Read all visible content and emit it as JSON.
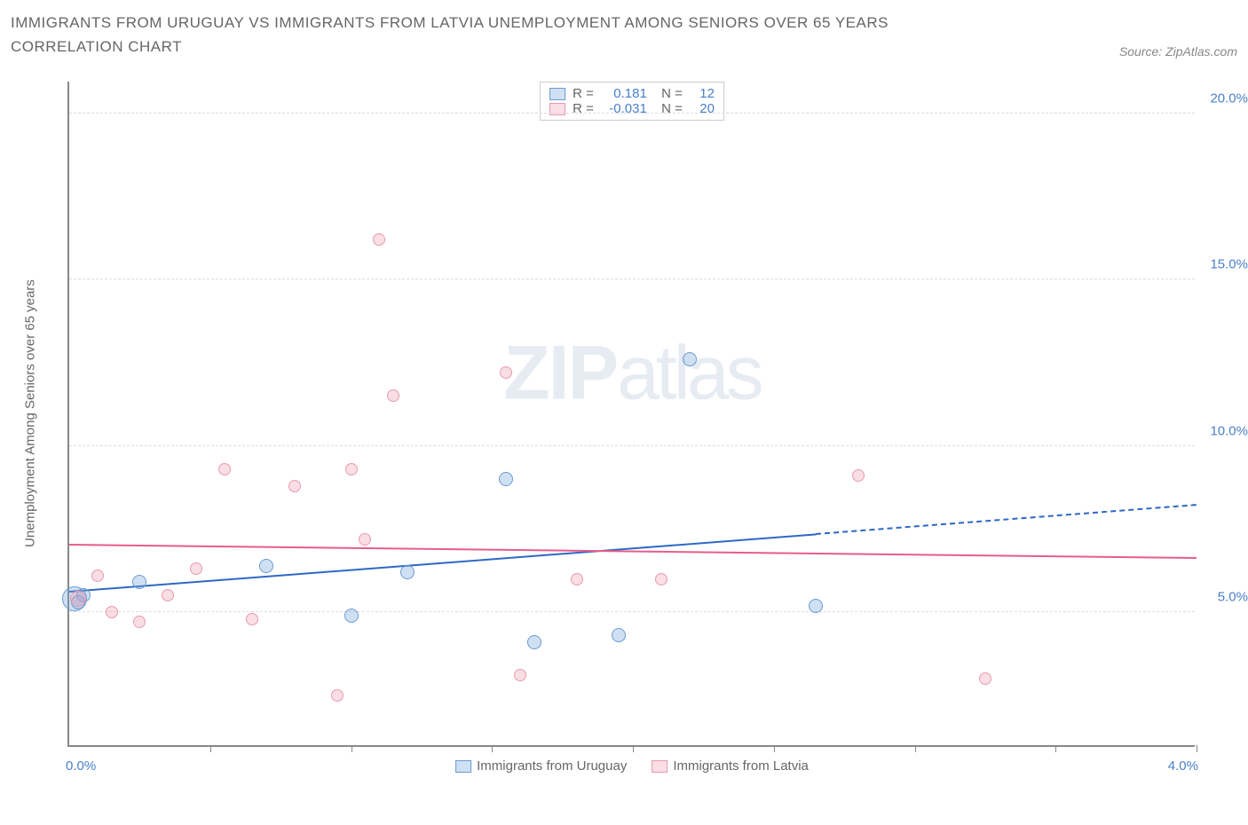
{
  "title": "IMMIGRANTS FROM URUGUAY VS IMMIGRANTS FROM LATVIA UNEMPLOYMENT AMONG SENIORS OVER 65 YEARS CORRELATION CHART",
  "source": "Source: ZipAtlas.com",
  "watermark_bold": "ZIP",
  "watermark_light": "atlas",
  "y_axis_title": "Unemployment Among Seniors over 65 years",
  "x_axis": {
    "min": 0.0,
    "max": 4.0,
    "label_left": "0.0%",
    "label_right": "4.0%",
    "tick_positions": [
      0.5,
      1.0,
      1.5,
      2.0,
      2.5,
      3.0,
      3.5,
      4.0
    ]
  },
  "y_axis": {
    "min": 1.0,
    "max": 21.0,
    "ticks": [
      {
        "v": 5.0,
        "label": "5.0%"
      },
      {
        "v": 10.0,
        "label": "10.0%"
      },
      {
        "v": 15.0,
        "label": "15.0%"
      },
      {
        "v": 20.0,
        "label": "20.0%"
      }
    ]
  },
  "series": [
    {
      "name": "Immigrants from Uruguay",
      "fill": "rgba(120,165,220,0.35)",
      "stroke": "#6b9bd1",
      "line_color": "#2d68c4",
      "R": "0.181",
      "N": "12",
      "points": [
        {
          "x": 0.02,
          "y": 5.4,
          "r": 14
        },
        {
          "x": 0.25,
          "y": 5.9,
          "r": 8
        },
        {
          "x": 0.7,
          "y": 6.4,
          "r": 8
        },
        {
          "x": 1.0,
          "y": 4.9,
          "r": 8
        },
        {
          "x": 1.2,
          "y": 6.2,
          "r": 8
        },
        {
          "x": 1.55,
          "y": 9.0,
          "r": 8
        },
        {
          "x": 1.65,
          "y": 4.1,
          "r": 8
        },
        {
          "x": 1.95,
          "y": 4.3,
          "r": 8
        },
        {
          "x": 2.2,
          "y": 12.6,
          "r": 8
        },
        {
          "x": 2.65,
          "y": 5.2,
          "r": 8
        },
        {
          "x": 0.05,
          "y": 5.5,
          "r": 8
        },
        {
          "x": 0.03,
          "y": 5.3,
          "r": 8
        }
      ],
      "trend": {
        "y_at_xmin": 5.6,
        "y_at_xmax": 8.2,
        "solid_until_x": 2.65
      }
    },
    {
      "name": "Immigrants from Latvia",
      "fill": "rgba(240,160,180,0.35)",
      "stroke": "#e89ab0",
      "line_color": "#e75d8a",
      "R": "-0.031",
      "N": "20",
      "points": [
        {
          "x": 0.03,
          "y": 5.4,
          "r": 9
        },
        {
          "x": 0.1,
          "y": 6.1,
          "r": 7
        },
        {
          "x": 0.15,
          "y": 5.0,
          "r": 7
        },
        {
          "x": 0.25,
          "y": 4.7,
          "r": 7
        },
        {
          "x": 0.35,
          "y": 5.5,
          "r": 7
        },
        {
          "x": 0.45,
          "y": 6.3,
          "r": 7
        },
        {
          "x": 0.55,
          "y": 9.3,
          "r": 7
        },
        {
          "x": 0.65,
          "y": 4.8,
          "r": 7
        },
        {
          "x": 0.8,
          "y": 8.8,
          "r": 7
        },
        {
          "x": 0.95,
          "y": 2.5,
          "r": 7
        },
        {
          "x": 1.0,
          "y": 9.3,
          "r": 7
        },
        {
          "x": 1.05,
          "y": 7.2,
          "r": 7
        },
        {
          "x": 1.1,
          "y": 16.2,
          "r": 7
        },
        {
          "x": 1.15,
          "y": 11.5,
          "r": 7
        },
        {
          "x": 1.55,
          "y": 12.2,
          "r": 7
        },
        {
          "x": 1.6,
          "y": 3.1,
          "r": 7
        },
        {
          "x": 1.8,
          "y": 6.0,
          "r": 7
        },
        {
          "x": 2.1,
          "y": 6.0,
          "r": 7
        },
        {
          "x": 2.8,
          "y": 9.1,
          "r": 7
        },
        {
          "x": 3.25,
          "y": 3.0,
          "r": 7
        }
      ],
      "trend": {
        "y_at_xmin": 7.0,
        "y_at_xmax": 6.6,
        "solid_until_x": 4.0
      }
    }
  ],
  "bottom_legend": [
    {
      "label": "Immigrants from Uruguay",
      "fill": "rgba(120,165,220,0.35)",
      "stroke": "#6b9bd1"
    },
    {
      "label": "Immigrants from Latvia",
      "fill": "rgba(240,160,180,0.35)",
      "stroke": "#e89ab0"
    }
  ]
}
